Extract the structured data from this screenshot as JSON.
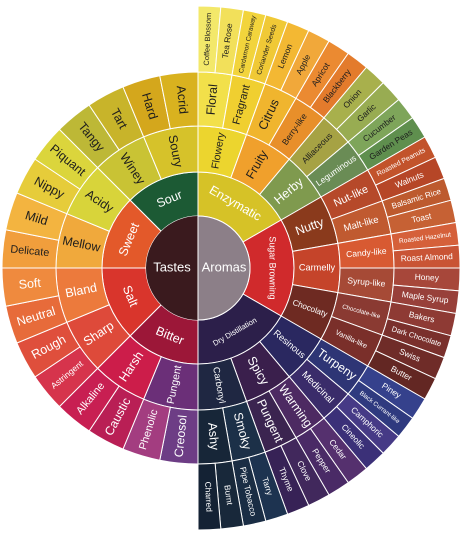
{
  "center": {
    "tastes": "Tastes",
    "aromas": "Aromas",
    "tastes_color": "#3a1a1e",
    "aromas_color": "#8c7f88"
  },
  "taste_groups": [
    {
      "name": "Sour",
      "color": "#1c5a34",
      "light": false,
      "subs": [
        {
          "name": "Soury",
          "color": "#d6c22a",
          "light": true,
          "items": [
            {
              "name": "Acrid",
              "color": "#d9b21f",
              "light": true
            },
            {
              "name": "Hard",
              "color": "#d4a71c",
              "light": true
            }
          ]
        },
        {
          "name": "Winey",
          "color": "#c9c334",
          "light": true,
          "items": [
            {
              "name": "Tart",
              "color": "#c8b42a",
              "light": true
            },
            {
              "name": "Tangy",
              "color": "#bdb836",
              "light": true
            }
          ]
        }
      ]
    },
    {
      "name": "Sweet",
      "color": "#e3592a",
      "light": false,
      "subs": [
        {
          "name": "Acidy",
          "color": "#d8d43a",
          "light": true,
          "items": [
            {
              "name": "Piquant",
              "color": "#dbd53c",
              "light": true
            },
            {
              "name": "Nippy",
              "color": "#e6cc3a",
              "light": true
            }
          ]
        },
        {
          "name": "Mellow",
          "color": "#f0a93c",
          "light": true,
          "items": [
            {
              "name": "Mild",
              "color": "#f3b440",
              "light": true
            },
            {
              "name": "Delicate",
              "color": "#f19e3c",
              "light": true
            }
          ]
        }
      ]
    },
    {
      "name": "Salt",
      "color": "#d9352c",
      "light": false,
      "subs": [
        {
          "name": "Bland",
          "color": "#ec7a3c",
          "light": false,
          "items": [
            {
              "name": "Soft",
              "color": "#ef8a3e",
              "light": false
            },
            {
              "name": "Neutral",
              "color": "#e76b3a",
              "light": false
            }
          ]
        },
        {
          "name": "Sharp",
          "color": "#de4a3a",
          "light": false,
          "items": [
            {
              "name": "Rough",
              "color": "#df4f3c",
              "light": false
            },
            {
              "name": "Astringent",
              "color": "#d6344c",
              "light": false
            }
          ]
        }
      ]
    },
    {
      "name": "Bitter",
      "color": "#9c1738",
      "light": false,
      "subs": [
        {
          "name": "Harsh",
          "color": "#cc1d4a",
          "light": false,
          "items": [
            {
              "name": "Alkaline",
              "color": "#c81f52",
              "light": false
            },
            {
              "name": "Caustic",
              "color": "#b91f55",
              "light": false
            }
          ]
        },
        {
          "name": "Pungent",
          "color": "#6b2f78",
          "light": false,
          "items": [
            {
              "name": "Phenolic",
              "color": "#a33d80",
              "light": false
            },
            {
              "name": "Creosol",
              "color": "#6d3d85",
              "light": false
            }
          ]
        }
      ]
    }
  ],
  "aroma_groups": [
    {
      "name": "Enzymatic",
      "color": "#d6c227",
      "light": false,
      "subs": [
        {
          "name": "Flowery",
          "color": "#ecd52e",
          "light": true,
          "items": [
            {
              "name": "Floral",
              "color": "#f2e04a",
              "light": true,
              "tips": [
                {
                  "name": "Coffee Blossom",
                  "color": "#f3e86a"
                },
                {
                  "name": "Tea Rose",
                  "color": "#f2e05a"
                }
              ]
            },
            {
              "name": "Fragrant",
              "color": "#f0cf30",
              "light": true,
              "tips": [
                {
                  "name": "Cardamon Caraway",
                  "color": "#f2d43c"
                },
                {
                  "name": "Coriander Seeds",
                  "color": "#f0c936"
                }
              ]
            }
          ]
        },
        {
          "name": "Fruity",
          "color": "#f0a02c",
          "light": true,
          "items": [
            {
              "name": "Citrus",
              "color": "#f0b52e",
              "light": true,
              "tips": [
                {
                  "name": "Lemon",
                  "color": "#f3b833"
                },
                {
                  "name": "Apple",
                  "color": "#f1a83a"
                }
              ]
            },
            {
              "name": "Berry-like",
              "color": "#e88f2a",
              "light": true,
              "tips": [
                {
                  "name": "Apricot",
                  "color": "#eb8a31"
                },
                {
                  "name": "Blackberry",
                  "color": "#e37b2c"
                }
              ]
            }
          ]
        },
        {
          "name": "Herby",
          "color": "#7f9a4e",
          "light": false,
          "items": [
            {
              "name": "Alliaceous",
              "color": "#a6a244",
              "light": true,
              "tips": [
                {
                  "name": "Onion",
                  "color": "#a8b04c"
                },
                {
                  "name": "Garlic",
                  "color": "#98ac52"
                }
              ]
            },
            {
              "name": "Leguminous",
              "color": "#6a8c55",
              "light": false,
              "tips": [
                {
                  "name": "Cucumber",
                  "color": "#7ea55a"
                },
                {
                  "name": "Garden Peas",
                  "color": "#5f8f4e"
                }
              ]
            }
          ]
        }
      ]
    },
    {
      "name": "Sugar Browning",
      "color": "#d02a2c",
      "light": false,
      "subs": [
        {
          "name": "Nutty",
          "color": "#8a3a1c",
          "light": false,
          "items": [
            {
              "name": "Nut-like",
              "color": "#b6492a",
              "light": false,
              "tips": [
                {
                  "name": "Roasted Peanuts",
                  "color": "#c2532b"
                },
                {
                  "name": "Walnuts",
                  "color": "#b64627"
                }
              ]
            },
            {
              "name": "Malt-like",
              "color": "#c05a30",
              "light": false,
              "tips": [
                {
                  "name": "Balsamic Rice",
                  "color": "#bd5a2e"
                },
                {
                  "name": "Toast",
                  "color": "#c66134"
                }
              ]
            }
          ]
        },
        {
          "name": "Carmelly",
          "color": "#c5442a",
          "light": false,
          "items": [
            {
              "name": "Candy-like",
              "color": "#d85a32",
              "light": false,
              "tips": [
                {
                  "name": "Roasted Hazelnut",
                  "color": "#d5603a"
                },
                {
                  "name": "Roast Almond",
                  "color": "#c95435"
                }
              ]
            },
            {
              "name": "Syrup-like",
              "color": "#a64a36",
              "light": false,
              "tips": [
                {
                  "name": "Honey",
                  "color": "#a7473a"
                },
                {
                  "name": "Maple Syrup",
                  "color": "#98403a"
                }
              ]
            }
          ]
        },
        {
          "name": "Chocolaty",
          "color": "#6e2a22",
          "light": false,
          "items": [
            {
              "name": "Chocolate-like",
              "color": "#8a3a32",
              "light": false,
              "tips": [
                {
                  "name": "Bakers",
                  "color": "#8e3a34"
                },
                {
                  "name": "Dark Chocolate",
                  "color": "#7a302c"
                }
              ]
            },
            {
              "name": "Vanilla-like",
              "color": "#7a2f2a",
              "light": false,
              "tips": [
                {
                  "name": "Swiss",
                  "color": "#6f2c28"
                },
                {
                  "name": "Butter",
                  "color": "#632723"
                }
              ]
            }
          ]
        }
      ]
    },
    {
      "name": "Dry Distillation",
      "color": "#2c1f4a",
      "light": false,
      "subs": [
        {
          "name": "Resinous",
          "color": "#2a2860",
          "light": false,
          "items": [
            {
              "name": "Turpeny",
              "color": "#2e3575",
              "light": false,
              "tips": [
                {
                  "name": "Piney",
                  "color": "#35418c"
                },
                {
                  "name": "Black Currant-like",
                  "color": "#2f3a7f"
                }
              ]
            },
            {
              "name": "Medicinal",
              "color": "#3a2c6a",
              "light": false,
              "tips": [
                {
                  "name": "Camphoric",
                  "color": "#463a86"
                },
                {
                  "name": "Cineolic",
                  "color": "#3b3078"
                }
              ]
            }
          ]
        },
        {
          "name": "Spicy",
          "color": "#3a1f4c",
          "light": false,
          "items": [
            {
              "name": "Warming",
              "color": "#4d2a62",
              "light": false,
              "tips": [
                {
                  "name": "Cedar",
                  "color": "#55306e"
                },
                {
                  "name": "Pepper",
                  "color": "#4a2a66"
                }
              ]
            },
            {
              "name": "Pungent",
              "color": "#3b2450",
              "light": false,
              "tips": [
                {
                  "name": "Clove",
                  "color": "#41285c"
                },
                {
                  "name": "Thyme",
                  "color": "#372256"
                }
              ]
            }
          ]
        },
        {
          "name": "Carbonyl",
          "color": "#1f2742",
          "light": false,
          "items": [
            {
              "name": "Smoky",
              "color": "#1c3048",
              "light": false,
              "tips": [
                {
                  "name": "Tarry",
                  "color": "#1d3350"
                },
                {
                  "name": "Pipe Tobacco",
                  "color": "#1a2d44"
                }
              ]
            },
            {
              "name": "Ashy",
              "color": "#172638",
              "light": false,
              "tips": [
                {
                  "name": "Burnt",
                  "color": "#18283a"
                },
                {
                  "name": "Charred",
                  "color": "#142234"
                }
              ]
            }
          ]
        }
      ]
    }
  ]
}
